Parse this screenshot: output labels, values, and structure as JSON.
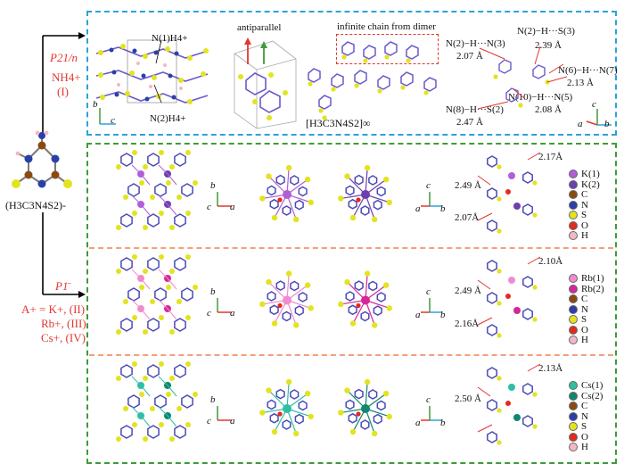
{
  "left": {
    "anion_label": "(H3C3N4S2)-",
    "group_top": "P21/n",
    "cation_top": "NH4+",
    "cation_top_roman": "(I)",
    "group_bottom": "P1̄",
    "cation_bottom_lines": [
      "A+ = K+, (II)",
      "Rb+, (III)",
      "Cs+, (IV)"
    ]
  },
  "top_panel": {
    "n1": "N(1)H4+",
    "n2": "N(2)H4+",
    "antiparallel": "antiparallel",
    "infinite_chain": "infinite chain from dimer",
    "chain_formula": "[H3C3N4S2]∞",
    "hbonds": [
      {
        "text": "N(2)−H···N(3)"
      },
      {
        "text": "2.07 Å"
      },
      {
        "text": "N(2)−H···S(3)"
      },
      {
        "text": "2.39 Å"
      },
      {
        "text": "N(6)−H···N(7)"
      },
      {
        "text": "2.13 Å"
      },
      {
        "text": "N(10)−H···N(5)"
      },
      {
        "text": "2.08 Å"
      },
      {
        "text": "N(8)−H···S(2)"
      },
      {
        "text": "2.47 Å"
      }
    ],
    "axes_left": {
      "b": "b",
      "c": "c"
    },
    "axes_right": {
      "c": "c",
      "a": "a",
      "b": "b"
    }
  },
  "rows": [
    {
      "distances": [
        "2.17Å",
        "2.49 Å",
        "2.07Å"
      ],
      "legend": [
        {
          "label": "K(1)",
          "color": "#b05fd6"
        },
        {
          "label": "K(2)",
          "color": "#6d3fb0"
        },
        {
          "label": "C",
          "color": "#8a4b12"
        },
        {
          "label": "N",
          "color": "#2b3fa8"
        },
        {
          "label": "S",
          "color": "#e3e320"
        },
        {
          "label": "O",
          "color": "#e22b1f"
        },
        {
          "label": "H",
          "color": "#f2b8c6"
        }
      ],
      "axes1": {
        "b": "b",
        "c": "c",
        "a": "a"
      },
      "axes2": {
        "c": "c",
        "a": "a",
        "b": "b"
      }
    },
    {
      "distances": [
        "2.10Å",
        "2.49 Å",
        "2.16Å"
      ],
      "legend": [
        {
          "label": "Rb(1)",
          "color": "#f08bd0"
        },
        {
          "label": "Rb(2)",
          "color": "#d6279a"
        },
        {
          "label": "C",
          "color": "#8a4b12"
        },
        {
          "label": "N",
          "color": "#2b3fa8"
        },
        {
          "label": "S",
          "color": "#e3e320"
        },
        {
          "label": "O",
          "color": "#e22b1f"
        },
        {
          "label": "H",
          "color": "#f2b8c6"
        }
      ],
      "axes1": {
        "b": "b",
        "c": "c",
        "a": "a"
      },
      "axes2": {
        "c": "c",
        "a": "a",
        "b": "b"
      }
    },
    {
      "distances": [
        "2.13Å",
        "2.50 Å"
      ],
      "legend": [
        {
          "label": "Cs(1)",
          "color": "#2fbfa4"
        },
        {
          "label": "Cs(2)",
          "color": "#10876e"
        },
        {
          "label": "C",
          "color": "#8a4b12"
        },
        {
          "label": "N",
          "color": "#2b3fa8"
        },
        {
          "label": "S",
          "color": "#e3e320"
        },
        {
          "label": "O",
          "color": "#e22b1f"
        },
        {
          "label": "H",
          "color": "#f2b8c6"
        }
      ],
      "axes1": {
        "b": "b",
        "c": "c",
        "a": "a"
      },
      "axes2": {
        "c": "c",
        "a": "a",
        "b": "b"
      }
    }
  ]
}
